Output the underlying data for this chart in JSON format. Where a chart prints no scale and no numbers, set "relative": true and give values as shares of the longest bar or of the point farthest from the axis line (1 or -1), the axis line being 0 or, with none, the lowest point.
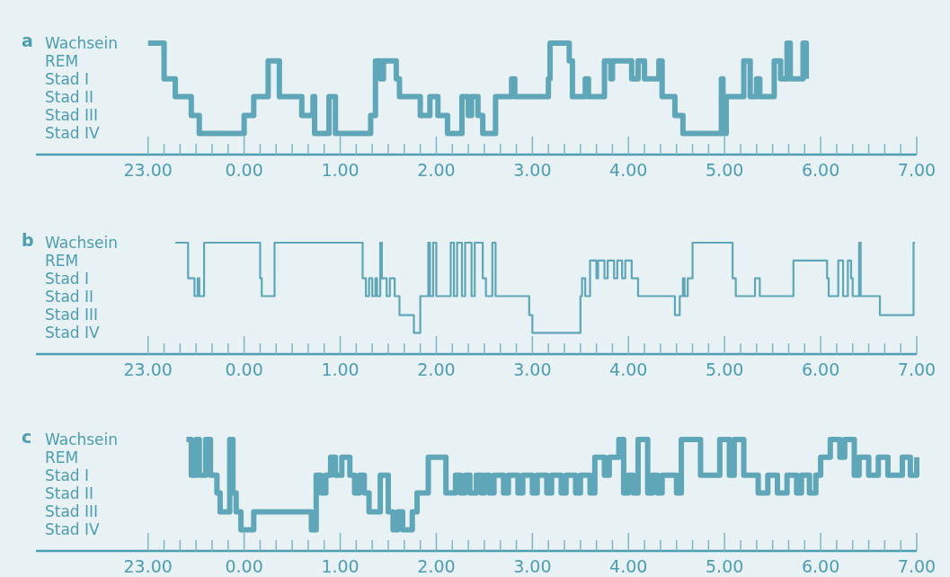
{
  "chart_data": [
    {
      "type": "step",
      "title": "a",
      "color": "#5ea6b8",
      "line_style": "solid",
      "marker": "none",
      "legend": false,
      "relative": true,
      "annotations": [
        "Wachsein",
        "REM",
        "Stad I",
        "Stad II",
        "Stad III",
        "Stad IV"
      ],
      "x": [
        "2000-01-01T23:00",
        "2000-01-01T23:10",
        "2000-01-01T23:17",
        "2000-01-01T23:27",
        "2000-01-01T23:32",
        "2000-01-02T00:00",
        "2000-01-02T00:06",
        "2000-01-02T00:15",
        "2000-01-02T00:22",
        "2000-01-02T00:36",
        "2000-01-02T00:43",
        "2000-01-02T00:44",
        "2000-01-02T00:53",
        "2000-01-02T00:57",
        "2000-01-02T01:19",
        "2000-01-02T01:22",
        "2000-01-02T01:25",
        "2000-01-02T01:27",
        "2000-01-02T01:35",
        "2000-01-02T01:37",
        "2000-01-02T01:50",
        "2000-01-02T01:56",
        "2000-01-02T02:01",
        "2000-01-02T02:07",
        "2000-01-02T02:16",
        "2000-01-02T02:20",
        "2000-01-02T02:22",
        "2000-01-02T02:26",
        "2000-01-02T02:29",
        "2000-01-02T02:37",
        "2000-01-02T02:47",
        "2000-01-02T02:49",
        "2000-01-02T03:10",
        "2000-01-02T03:11",
        "2000-01-02T03:23",
        "2000-01-02T03:25",
        "2000-01-02T03:33",
        "2000-01-02T03:35",
        "2000-01-02T03:45",
        "2000-01-02T03:49",
        "2000-01-02T03:50",
        "2000-01-02T04:02",
        "2000-01-02T04:06",
        "2000-01-02T04:10",
        "2000-01-02T04:19",
        "2000-01-02T04:21",
        "2000-01-02T04:29",
        "2000-01-02T04:34",
        "2000-01-02T04:58",
        "2000-01-02T04:59",
        "2000-01-02T05:01",
        "2000-01-02T05:12",
        "2000-01-02T05:16",
        "2000-01-02T05:20",
        "2000-01-02T05:22",
        "2000-01-02T05:31",
        "2000-01-02T05:35",
        "2000-01-02T05:39",
        "2000-01-02T05:41",
        "2000-01-02T05:49",
        "2000-01-02T05:51"
      ],
      "values": [
        1,
        0.68,
        0.52,
        0.35,
        0.19,
        0.35,
        0.52,
        0.84,
        0.52,
        0.35,
        0.52,
        0.19,
        0.52,
        0.19,
        0.35,
        0.84,
        0.68,
        0.84,
        0.68,
        0.52,
        0.35,
        0.52,
        0.35,
        0.19,
        0.52,
        0.35,
        0.52,
        0.35,
        0.19,
        0.52,
        0.68,
        0.52,
        0.68,
        1,
        0.84,
        0.52,
        0.68,
        0.52,
        0.84,
        0.68,
        0.84,
        0.68,
        0.84,
        0.68,
        0.84,
        0.52,
        0.35,
        0.19,
        0.68,
        0.19,
        0.52,
        0.84,
        0.52,
        0.68,
        0.52,
        0.84,
        0.68,
        1,
        0.68,
        1,
        0.68
      ],
      "xlim": [
        "2000-01-01T21:50",
        "2000-01-02T07:00"
      ],
      "xticks": [
        {
          "value": "2000-01-01T23:00",
          "label": "23.00"
        },
        {
          "value": "2000-01-01T23:10",
          "label": null
        },
        {
          "value": "2000-01-01T23:20",
          "label": null
        },
        {
          "value": "2000-01-01T23:30",
          "label": null
        },
        {
          "value": "2000-01-01T23:40",
          "label": null
        },
        {
          "value": "2000-01-01T23:50",
          "label": null
        },
        {
          "value": "2000-01-02T00:00",
          "label": "0.00"
        },
        {
          "value": "2000-01-02T00:10",
          "label": null
        },
        {
          "value": "2000-01-02T00:20",
          "label": null
        },
        {
          "value": "2000-01-02T00:30",
          "label": null
        },
        {
          "value": "2000-01-02T00:40",
          "label": null
        },
        {
          "value": "2000-01-02T00:50",
          "label": null
        },
        {
          "value": "2000-01-02T01:00",
          "label": "1.00"
        },
        {
          "value": "2000-01-02T01:10",
          "label": null
        },
        {
          "value": "2000-01-02T01:20",
          "label": null
        },
        {
          "value": "2000-01-02T01:30",
          "label": null
        },
        {
          "value": "2000-01-02T01:40",
          "label": null
        },
        {
          "value": "2000-01-02T01:50",
          "label": null
        },
        {
          "value": "2000-01-02T02:00",
          "label": "2.00"
        },
        {
          "value": "2000-01-02T02:10",
          "label": null
        },
        {
          "value": "2000-01-02T02:20",
          "label": null
        },
        {
          "value": "2000-01-02T02:30",
          "label": null
        },
        {
          "value": "2000-01-02T02:40",
          "label": null
        },
        {
          "value": "2000-01-02T02:50",
          "label": null
        },
        {
          "value": "2000-01-02T03:00",
          "label": "3.00"
        },
        {
          "value": "2000-01-02T03:10",
          "label": null
        },
        {
          "value": "2000-01-02T03:20",
          "label": null
        },
        {
          "value": "2000-01-02T03:30",
          "label": null
        },
        {
          "value": "2000-01-02T03:40",
          "label": null
        },
        {
          "value": "2000-01-02T03:50",
          "label": null
        },
        {
          "value": "2000-01-02T04:00",
          "label": "4.00"
        },
        {
          "value": "2000-01-02T04:10",
          "label": null
        },
        {
          "value": "2000-01-02T04:20",
          "label": null
        },
        {
          "value": "2000-01-02T04:30",
          "label": null
        },
        {
          "value": "2000-01-02T04:40",
          "label": null
        },
        {
          "value": "2000-01-02T04:50",
          "label": null
        },
        {
          "value": "2000-01-02T05:00",
          "label": "5.00"
        },
        {
          "value": "2000-01-02T05:10",
          "label": null
        },
        {
          "value": "2000-01-02T05:20",
          "label": null
        },
        {
          "value": "2000-01-02T05:30",
          "label": null
        },
        {
          "value": "2000-01-02T05:40",
          "label": null
        },
        {
          "value": "2000-01-02T05:50",
          "label": null
        },
        {
          "value": "2000-01-02T06:00",
          "label": "6.00"
        },
        {
          "value": "2000-01-02T06:10",
          "label": null
        },
        {
          "value": "2000-01-02T06:20",
          "label": null
        },
        {
          "value": "2000-01-02T06:30",
          "label": null
        },
        {
          "value": "2000-01-02T06:40",
          "label": null
        },
        {
          "value": "2000-01-02T06:50",
          "label": null
        },
        {
          "value": "2000-01-02T07:00",
          "label": "7.00"
        }
      ]
    },
    {
      "type": "step",
      "title": "b",
      "color": "#5ea6b8",
      "line_style": "solid",
      "marker": "none",
      "legend": false,
      "relative": true,
      "annotations": [
        "Wachsein",
        "REM",
        "Stad I",
        "Stad II",
        "Stad III",
        "Stad IV"
      ],
      "x": [
        "2000-01-01T23:17",
        "2000-01-01T23:25",
        "2000-01-01T23:29",
        "2000-01-01T23:31",
        "2000-01-01T23:32",
        "2000-01-01T23:35",
        "2000-01-02T00:10",
        "2000-01-02T00:11",
        "2000-01-02T00:19",
        "2000-01-02T01:14",
        "2000-01-02T01:16",
        "2000-01-02T01:18",
        "2000-01-02T01:20",
        "2000-01-02T01:22",
        "2000-01-02T01:23",
        "2000-01-02T01:25",
        "2000-01-02T01:26",
        "2000-01-02T01:29",
        "2000-01-02T01:31",
        "2000-01-02T01:34",
        "2000-01-02T01:37",
        "2000-01-02T01:46",
        "2000-01-02T01:50",
        "2000-01-02T01:55",
        "2000-01-02T01:56",
        "2000-01-02T01:58",
        "2000-01-02T02:00",
        "2000-01-02T02:09",
        "2000-01-02T02:11",
        "2000-01-02T02:13",
        "2000-01-02T02:16",
        "2000-01-02T02:18",
        "2000-01-02T02:22",
        "2000-01-02T02:24",
        "2000-01-02T02:29",
        "2000-01-02T02:31",
        "2000-01-02T02:35",
        "2000-01-02T02:37",
        "2000-01-02T02:58",
        "2000-01-02T03:00",
        "2000-01-02T03:30",
        "2000-01-02T03:31",
        "2000-01-02T03:33",
        "2000-01-02T03:36",
        "2000-01-02T03:40",
        "2000-01-02T03:41",
        "2000-01-02T03:45",
        "2000-01-02T03:47",
        "2000-01-02T03:51",
        "2000-01-02T03:53",
        "2000-01-02T03:56",
        "2000-01-02T03:58",
        "2000-01-02T04:02",
        "2000-01-02T04:06",
        "2000-01-02T04:29",
        "2000-01-02T04:32",
        "2000-01-02T04:34",
        "2000-01-02T04:35",
        "2000-01-02T04:37",
        "2000-01-02T04:40",
        "2000-01-02T05:05",
        "2000-01-02T05:07",
        "2000-01-02T05:19",
        "2000-01-02T05:22",
        "2000-01-02T05:43",
        "2000-01-02T06:04",
        "2000-01-02T06:05",
        "2000-01-02T06:11",
        "2000-01-02T06:14",
        "2000-01-02T06:17",
        "2000-01-02T06:19",
        "2000-01-02T06:20",
        "2000-01-02T06:24",
        "2000-01-02T06:25",
        "2000-01-02T06:37",
        "2000-01-02T06:58",
        "2000-01-02T06:59"
      ],
      "values": [
        1,
        0.68,
        0.52,
        0.68,
        0.52,
        1,
        0.68,
        0.52,
        1,
        0.68,
        0.52,
        0.68,
        0.52,
        0.68,
        0.52,
        1,
        0.68,
        0.52,
        0.68,
        0.52,
        0.35,
        0.19,
        0.52,
        1,
        0.52,
        1,
        0.52,
        1,
        0.52,
        1,
        0.52,
        1,
        0.52,
        1,
        0.68,
        0.52,
        1,
        0.52,
        0.35,
        0.19,
        0.52,
        0.68,
        0.52,
        0.84,
        0.68,
        0.84,
        0.68,
        0.84,
        0.68,
        0.84,
        0.68,
        0.84,
        0.68,
        0.52,
        0.35,
        0.52,
        0.68,
        0.52,
        0.68,
        1,
        0.68,
        0.52,
        0.68,
        0.52,
        0.84,
        0.68,
        0.52,
        0.84,
        0.52,
        0.84,
        0.68,
        0.52,
        1,
        0.52,
        0.35,
        1,
        1
      ],
      "xlim": [
        "2000-01-01T21:50",
        "2000-01-02T07:00"
      ],
      "xticks": [
        {
          "value": "2000-01-01T23:00",
          "label": "23.00"
        },
        {
          "value": "2000-01-01T23:10",
          "label": null
        },
        {
          "value": "2000-01-01T23:20",
          "label": null
        },
        {
          "value": "2000-01-01T23:30",
          "label": null
        },
        {
          "value": "2000-01-01T23:40",
          "label": null
        },
        {
          "value": "2000-01-01T23:50",
          "label": null
        },
        {
          "value": "2000-01-02T00:00",
          "label": "0.00"
        },
        {
          "value": "2000-01-02T00:10",
          "label": null
        },
        {
          "value": "2000-01-02T00:20",
          "label": null
        },
        {
          "value": "2000-01-02T00:30",
          "label": null
        },
        {
          "value": "2000-01-02T00:40",
          "label": null
        },
        {
          "value": "2000-01-02T00:50",
          "label": null
        },
        {
          "value": "2000-01-02T01:00",
          "label": "1.00"
        },
        {
          "value": "2000-01-02T01:10",
          "label": null
        },
        {
          "value": "2000-01-02T01:20",
          "label": null
        },
        {
          "value": "2000-01-02T01:30",
          "label": null
        },
        {
          "value": "2000-01-02T01:40",
          "label": null
        },
        {
          "value": "2000-01-02T01:50",
          "label": null
        },
        {
          "value": "2000-01-02T02:00",
          "label": "2.00"
        },
        {
          "value": "2000-01-02T02:10",
          "label": null
        },
        {
          "value": "2000-01-02T02:20",
          "label": null
        },
        {
          "value": "2000-01-02T02:30",
          "label": null
        },
        {
          "value": "2000-01-02T02:40",
          "label": null
        },
        {
          "value": "2000-01-02T02:50",
          "label": null
        },
        {
          "value": "2000-01-02T03:00",
          "label": "3.00"
        },
        {
          "value": "2000-01-02T03:10",
          "label": null
        },
        {
          "value": "2000-01-02T03:20",
          "label": null
        },
        {
          "value": "2000-01-02T03:30",
          "label": null
        },
        {
          "value": "2000-01-02T03:40",
          "label": null
        },
        {
          "value": "2000-01-02T03:50",
          "label": null
        },
        {
          "value": "2000-01-02T04:00",
          "label": "4.00"
        },
        {
          "value": "2000-01-02T04:10",
          "label": null
        },
        {
          "value": "2000-01-02T04:20",
          "label": null
        },
        {
          "value": "2000-01-02T04:30",
          "label": null
        },
        {
          "value": "2000-01-02T04:40",
          "label": null
        },
        {
          "value": "2000-01-02T04:50",
          "label": null
        },
        {
          "value": "2000-01-02T05:00",
          "label": "5.00"
        },
        {
          "value": "2000-01-02T05:10",
          "label": null
        },
        {
          "value": "2000-01-02T05:20",
          "label": null
        },
        {
          "value": "2000-01-02T05:30",
          "label": null
        },
        {
          "value": "2000-01-02T05:40",
          "label": null
        },
        {
          "value": "2000-01-02T05:50",
          "label": null
        },
        {
          "value": "2000-01-02T06:00",
          "label": "6.00"
        },
        {
          "value": "2000-01-02T06:10",
          "label": null
        },
        {
          "value": "2000-01-02T06:20",
          "label": null
        },
        {
          "value": "2000-01-02T06:30",
          "label": null
        },
        {
          "value": "2000-01-02T06:40",
          "label": null
        },
        {
          "value": "2000-01-02T06:50",
          "label": null
        },
        {
          "value": "2000-01-02T07:00",
          "label": "7.00"
        }
      ]
    },
    {
      "type": "step",
      "title": "c",
      "color": "#5ea6b8",
      "line_style": "solid",
      "marker": "none",
      "legend": false,
      "relative": true,
      "annotations": [
        "Wachsein",
        "REM",
        "Stad I",
        "Stad II",
        "Stad III",
        "Stad IV"
      ],
      "x": [
        "2000-01-01T23:24",
        "2000-01-01T23:27",
        "2000-01-01T23:30",
        "2000-01-01T23:32",
        "2000-01-01T23:36",
        "2000-01-01T23:39",
        "2000-01-01T23:43",
        "2000-01-01T23:45",
        "2000-01-01T23:51",
        "2000-01-01T23:53",
        "2000-01-01T23:55",
        "2000-01-01T23:58",
        "2000-01-02T00:06",
        "2000-01-02T00:42",
        "2000-01-02T00:45",
        "2000-01-02T00:48",
        "2000-01-02T00:51",
        "2000-01-02T00:54",
        "2000-01-02T00:57",
        "2000-01-02T01:01",
        "2000-01-02T01:06",
        "2000-01-02T01:09",
        "2000-01-02T01:12",
        "2000-01-02T01:15",
        "2000-01-02T01:18",
        "2000-01-02T01:25",
        "2000-01-02T01:30",
        "2000-01-02T01:33",
        "2000-01-02T01:36",
        "2000-01-02T01:39",
        "2000-01-02T01:45",
        "2000-01-02T01:48",
        "2000-01-02T01:55",
        "2000-01-02T02:06",
        "2000-01-02T02:12",
        "2000-01-02T02:15",
        "2000-01-02T02:18",
        "2000-01-02T02:21",
        "2000-01-02T02:25",
        "2000-01-02T02:28",
        "2000-01-02T02:30",
        "2000-01-02T02:33",
        "2000-01-02T02:36",
        "2000-01-02T02:42",
        "2000-01-02T02:45",
        "2000-01-02T02:51",
        "2000-01-02T02:54",
        "2000-01-02T03:00",
        "2000-01-02T03:03",
        "2000-01-02T03:09",
        "2000-01-02T03:12",
        "2000-01-02T03:18",
        "2000-01-02T03:21",
        "2000-01-02T03:27",
        "2000-01-02T03:30",
        "2000-01-02T03:36",
        "2000-01-02T03:39",
        "2000-01-02T03:45",
        "2000-01-02T03:48",
        "2000-01-02T03:54",
        "2000-01-02T03:57",
        "2000-01-02T04:00",
        "2000-01-02T04:03",
        "2000-01-02T04:06",
        "2000-01-02T04:12",
        "2000-01-02T04:15",
        "2000-01-02T04:18",
        "2000-01-02T04:21",
        "2000-01-02T04:30",
        "2000-01-02T04:33",
        "2000-01-02T04:39",
        "2000-01-02T04:45",
        "2000-01-02T04:57",
        "2000-01-02T05:03",
        "2000-01-02T05:06",
        "2000-01-02T05:12",
        "2000-01-02T05:21",
        "2000-01-02T05:27",
        "2000-01-02T05:33",
        "2000-01-02T05:39",
        "2000-01-02T05:45",
        "2000-01-02T05:48",
        "2000-01-02T05:53",
        "2000-01-02T05:57",
        "2000-01-02T06:00",
        "2000-01-02T06:06",
        "2000-01-02T06:12",
        "2000-01-02T06:15",
        "2000-01-02T06:21",
        "2000-01-02T06:24",
        "2000-01-02T06:30",
        "2000-01-02T06:36",
        "2000-01-02T06:42",
        "2000-01-02T06:51",
        "2000-01-02T06:56",
        "2000-01-02T07:00"
      ],
      "values": [
        1,
        0.68,
        1,
        0.68,
        1,
        0.68,
        0.52,
        0.35,
        1,
        0.52,
        0.35,
        0.19,
        0.35,
        0.19,
        0.68,
        0.52,
        0.68,
        0.84,
        0.68,
        0.84,
        0.68,
        0.52,
        0.68,
        0.52,
        0.35,
        0.68,
        0.35,
        0.19,
        0.35,
        0.19,
        0.35,
        0.52,
        0.84,
        0.52,
        0.68,
        0.52,
        0.68,
        0.52,
        0.68,
        0.52,
        0.68,
        0.52,
        0.68,
        0.52,
        0.68,
        0.52,
        0.68,
        0.52,
        0.68,
        0.52,
        0.68,
        0.52,
        0.68,
        0.52,
        0.68,
        0.52,
        0.84,
        0.68,
        0.84,
        1,
        0.52,
        0.68,
        0.52,
        1,
        0.52,
        0.68,
        0.52,
        0.68,
        0.52,
        1,
        1,
        0.68,
        1,
        0.68,
        1,
        0.68,
        0.52,
        0.68,
        0.52,
        0.68,
        0.52,
        0.68,
        0.52,
        0.68,
        0.84,
        1,
        0.84,
        1,
        0.68,
        0.84,
        0.68,
        0.84,
        0.68,
        0.84,
        0.68,
        0.84
      ],
      "xlim": [
        "2000-01-01T21:50",
        "2000-01-02T07:00"
      ],
      "xticks": [
        {
          "value": "2000-01-01T23:00",
          "label": "23.00"
        },
        {
          "value": "2000-01-01T23:10",
          "label": null
        },
        {
          "value": "2000-01-01T23:20",
          "label": null
        },
        {
          "value": "2000-01-01T23:30",
          "label": null
        },
        {
          "value": "2000-01-01T23:40",
          "label": null
        },
        {
          "value": "2000-01-01T23:50",
          "label": null
        },
        {
          "value": "2000-01-02T00:00",
          "label": "0.00"
        },
        {
          "value": "2000-01-02T00:10",
          "label": null
        },
        {
          "value": "2000-01-02T00:20",
          "label": null
        },
        {
          "value": "2000-01-02T00:30",
          "label": null
        },
        {
          "value": "2000-01-02T00:40",
          "label": null
        },
        {
          "value": "2000-01-02T00:50",
          "label": null
        },
        {
          "value": "2000-01-02T01:00",
          "label": "1.00"
        },
        {
          "value": "2000-01-02T01:10",
          "label": null
        },
        {
          "value": "2000-01-02T01:20",
          "label": null
        },
        {
          "value": "2000-01-02T01:30",
          "label": null
        },
        {
          "value": "2000-01-02T01:40",
          "label": null
        },
        {
          "value": "2000-01-02T01:50",
          "label": null
        },
        {
          "value": "2000-01-02T02:00",
          "label": "2.00"
        },
        {
          "value": "2000-01-02T02:10",
          "label": null
        },
        {
          "value": "2000-01-02T02:20",
          "label": null
        },
        {
          "value": "2000-01-02T02:30",
          "label": null
        },
        {
          "value": "2000-01-02T02:40",
          "label": null
        },
        {
          "value": "2000-01-02T02:50",
          "label": null
        },
        {
          "value": "2000-01-02T03:00",
          "label": "3.00"
        },
        {
          "value": "2000-01-02T03:10",
          "label": null
        },
        {
          "value": "2000-01-02T03:20",
          "label": null
        },
        {
          "value": "2000-01-02T03:30",
          "label": null
        },
        {
          "value": "2000-01-02T03:40",
          "label": null
        },
        {
          "value": "2000-01-02T03:50",
          "label": null
        },
        {
          "value": "2000-01-02T04:00",
          "label": "4.00"
        },
        {
          "value": "2000-01-02T04:10",
          "label": null
        },
        {
          "value": "2000-01-02T04:20",
          "label": null
        },
        {
          "value": "2000-01-02T04:30",
          "label": null
        },
        {
          "value": "2000-01-02T04:40",
          "label": null
        },
        {
          "value": "2000-01-02T04:50",
          "label": null
        },
        {
          "value": "2000-01-02T05:00",
          "label": "5.00"
        },
        {
          "value": "2000-01-02T05:10",
          "label": null
        },
        {
          "value": "2000-01-02T05:20",
          "label": null
        },
        {
          "value": "2000-01-02T05:30",
          "label": null
        },
        {
          "value": "2000-01-02T05:40",
          "label": null
        },
        {
          "value": "2000-01-02T05:50",
          "label": null
        },
        {
          "value": "2000-01-02T06:00",
          "label": "6.00"
        },
        {
          "value": "2000-01-02T06:10",
          "label": null
        },
        {
          "value": "2000-01-02T06:20",
          "label": null
        },
        {
          "value": "2000-01-02T06:30",
          "label": null
        },
        {
          "value": "2000-01-02T06:40",
          "label": null
        },
        {
          "value": "2000-01-02T06:50",
          "label": null
        },
        {
          "value": "2000-01-02T07:00",
          "label": "7.00"
        }
      ]
    }
  ]
}
